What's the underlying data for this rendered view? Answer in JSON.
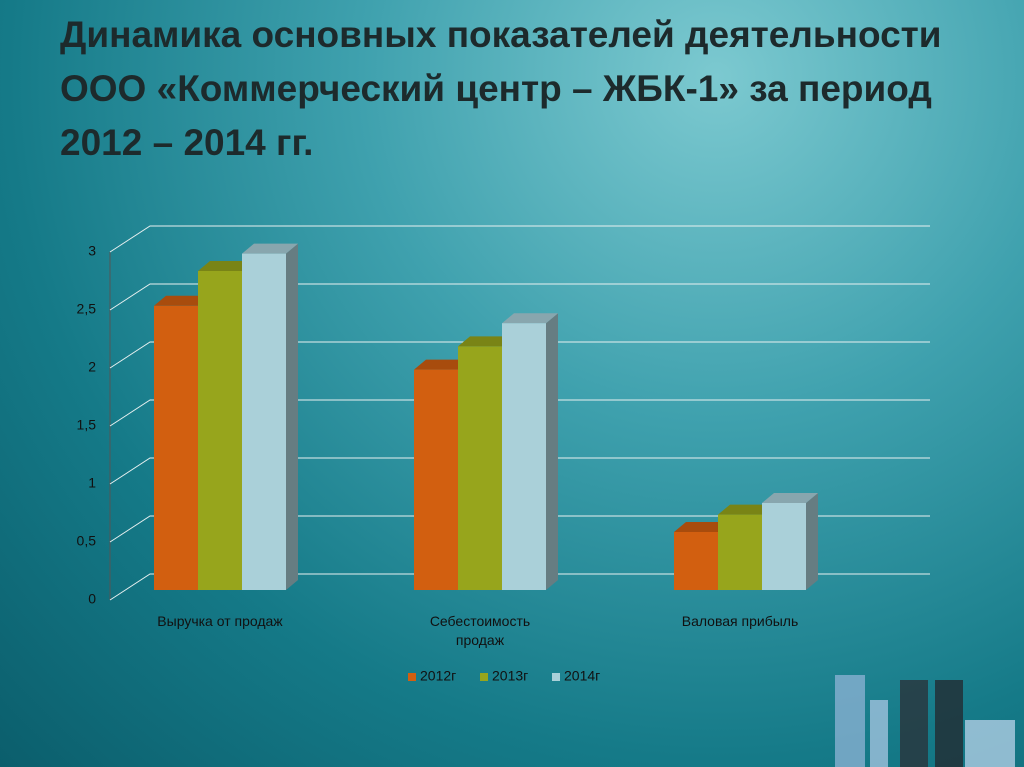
{
  "chart_data": {
    "type": "bar3d",
    "title": "Динамика основных показателей деятельности ООО «Коммерческий центр – ЖБК-1» за период 2012 – 2014 гг.",
    "categories": [
      "Выручка от продаж",
      "Себестоимость продаж",
      "Валовая прибыль"
    ],
    "series": [
      {
        "name": "2012г",
        "color": "#d25f10",
        "values": [
          2.45,
          1.9,
          0.5
        ]
      },
      {
        "name": "2013г",
        "color": "#97a51c",
        "values": [
          2.75,
          2.1,
          0.65
        ]
      },
      {
        "name": "2014г",
        "color": "#aad0d9",
        "values": [
          2.9,
          2.3,
          0.75
        ]
      }
    ],
    "ylim": [
      0,
      3
    ],
    "yticks": [
      0,
      {
        "value": 0.5,
        "label": "0,5"
      },
      1,
      {
        "value": 1.5,
        "label": "1,5"
      },
      2,
      {
        "value": 2.5,
        "label": "2,5"
      },
      3
    ],
    "grid": true,
    "legend": "bottom"
  }
}
